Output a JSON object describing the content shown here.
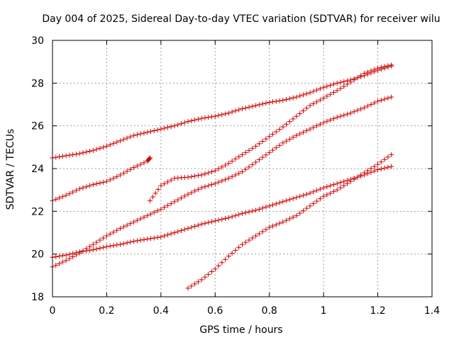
{
  "chart_data": {
    "type": "scatter",
    "title": "Day 004 of 2025, Sidereal Day-to-day VTEC variation (SDTVAR) for receiver wilu",
    "xlabel": "GPS time / hours",
    "ylabel": "SDTVAR / TECUs",
    "xlim": [
      0,
      1.4
    ],
    "ylim": [
      18,
      30
    ],
    "xticks": [
      0,
      0.2,
      0.4,
      0.6,
      0.8,
      1,
      1.2,
      1.4
    ],
    "xtick_labels": [
      "0",
      "0.2",
      "0.4",
      "0.6",
      "0.8",
      "1",
      "1.2",
      "1.4"
    ],
    "yticks": [
      18,
      20,
      22,
      24,
      26,
      28,
      30
    ],
    "ytick_labels": [
      "18",
      "20",
      "22",
      "24",
      "26",
      "28",
      "30"
    ],
    "grid": true,
    "marker": "+",
    "marker_color": "#cc0000",
    "series": [
      {
        "name": "top",
        "x": [
          0,
          0.05,
          0.1,
          0.15,
          0.2,
          0.25,
          0.3,
          0.35,
          0.4,
          0.45,
          0.5,
          0.55,
          0.6,
          0.65,
          0.7,
          0.75,
          0.8,
          0.85,
          0.9,
          0.95,
          1.0,
          1.05,
          1.1,
          1.15,
          1.2,
          1.25
        ],
        "y": [
          24.5,
          24.6,
          24.7,
          24.85,
          25.05,
          25.3,
          25.55,
          25.7,
          25.85,
          26.0,
          26.2,
          26.35,
          26.45,
          26.6,
          26.8,
          26.95,
          27.1,
          27.2,
          27.35,
          27.55,
          27.8,
          28.0,
          28.15,
          28.35,
          28.6,
          28.8
        ]
      },
      {
        "name": "upper-left",
        "x": [
          0,
          0.05,
          0.1,
          0.15,
          0.2,
          0.25,
          0.3,
          0.35,
          0.36
        ],
        "y": [
          22.5,
          22.75,
          23.05,
          23.25,
          23.4,
          23.7,
          24.05,
          24.35,
          24.5
        ]
      },
      {
        "name": "mid-right-a",
        "x": [
          0.36,
          0.4,
          0.45,
          0.5,
          0.55,
          0.6,
          0.65,
          0.7,
          0.75,
          0.8,
          0.85,
          0.9,
          0.95,
          1.0,
          1.05,
          1.1,
          1.15,
          1.2,
          1.25
        ],
        "y": [
          22.5,
          23.2,
          23.55,
          23.6,
          23.7,
          23.9,
          24.25,
          24.65,
          25.05,
          25.5,
          25.95,
          26.45,
          26.95,
          27.3,
          27.65,
          28.05,
          28.45,
          28.7,
          28.85
        ]
      },
      {
        "name": "mid-right-b",
        "x": [
          0,
          0.05,
          0.1,
          0.15,
          0.2,
          0.25,
          0.3,
          0.35,
          0.4,
          0.45,
          0.5,
          0.55,
          0.6,
          0.65,
          0.7,
          0.75,
          0.8,
          0.85,
          0.9,
          0.95,
          1.0,
          1.05,
          1.1,
          1.15,
          1.2,
          1.25
        ],
        "y": [
          19.4,
          19.7,
          20.05,
          20.45,
          20.85,
          21.2,
          21.5,
          21.8,
          22.1,
          22.45,
          22.8,
          23.1,
          23.3,
          23.55,
          23.85,
          24.3,
          24.75,
          25.2,
          25.55,
          25.85,
          26.15,
          26.4,
          26.6,
          26.85,
          27.15,
          27.35
        ]
      },
      {
        "name": "lower",
        "x": [
          0,
          0.05,
          0.1,
          0.15,
          0.2,
          0.25,
          0.3,
          0.35,
          0.4,
          0.45,
          0.5,
          0.55,
          0.6,
          0.65,
          0.7,
          0.75,
          0.8,
          0.85,
          0.9,
          0.95,
          1.0,
          1.05,
          1.1,
          1.15,
          1.2,
          1.25
        ],
        "y": [
          19.85,
          19.95,
          20.1,
          20.2,
          20.35,
          20.45,
          20.6,
          20.7,
          20.8,
          21.0,
          21.2,
          21.4,
          21.55,
          21.7,
          21.9,
          22.05,
          22.25,
          22.45,
          22.65,
          22.85,
          23.1,
          23.3,
          23.5,
          23.7,
          23.95,
          24.1
        ]
      },
      {
        "name": "bottom",
        "x": [
          0.5,
          0.55,
          0.6,
          0.65,
          0.7,
          0.75,
          0.8,
          0.85,
          0.9,
          0.95,
          1.0,
          1.05,
          1.1,
          1.15,
          1.2,
          1.25
        ],
        "y": [
          18.4,
          18.8,
          19.3,
          19.9,
          20.45,
          20.85,
          21.25,
          21.5,
          21.8,
          22.25,
          22.7,
          23.0,
          23.4,
          23.8,
          24.2,
          24.65
        ]
      }
    ]
  }
}
